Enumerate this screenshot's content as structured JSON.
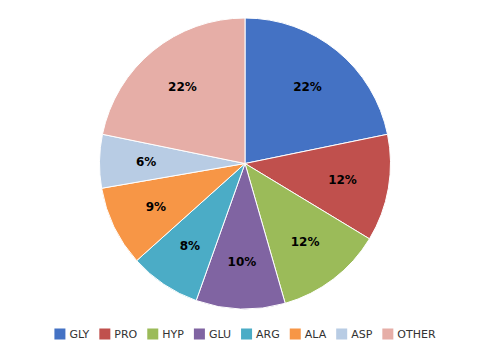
{
  "chart_data": {
    "type": "pie",
    "categories": [
      "GLY",
      "PRO",
      "HYP",
      "GLU",
      "ARG",
      "ALA",
      "ASP",
      "OTHER"
    ],
    "values": [
      22,
      12,
      12,
      10,
      8,
      9,
      6,
      22
    ],
    "value_labels": [
      "22%",
      "12%",
      "12%",
      "10%",
      "8%",
      "9%",
      "6%",
      "22%"
    ],
    "colors": [
      "#4472C4",
      "#C0504D",
      "#9BBB59",
      "#8064A2",
      "#4BACC6",
      "#F79646",
      "#B8CCE4",
      "#E6AEA7"
    ],
    "data_labels": true,
    "legend": "bottom"
  }
}
